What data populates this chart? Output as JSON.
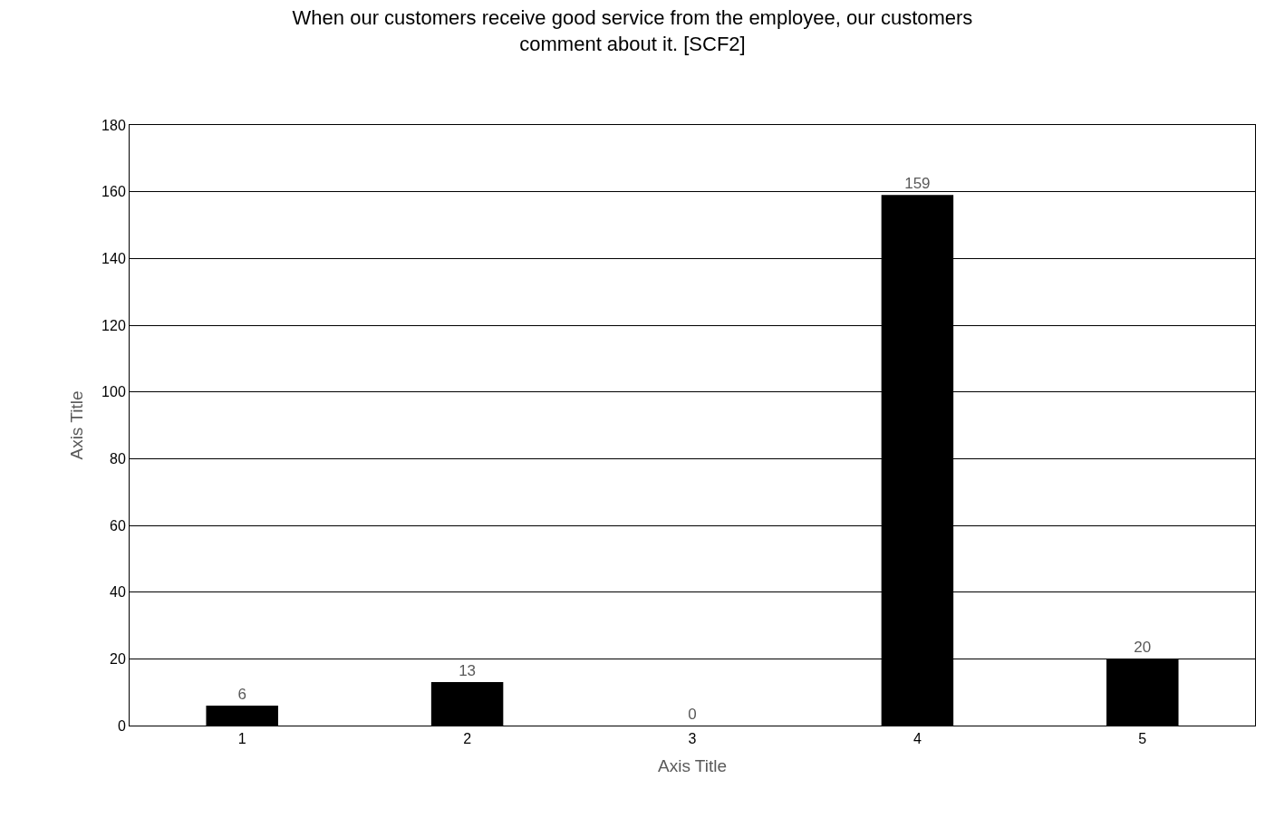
{
  "chart_data": {
    "type": "bar",
    "title": "When our customers receive good service from the employee, our customers\ncomment about it. [SCF2]",
    "xlabel": "Axis Title",
    "ylabel": "Axis Title",
    "categories": [
      "1",
      "2",
      "3",
      "4",
      "5"
    ],
    "values": [
      6,
      13,
      0,
      159,
      20
    ],
    "color": "#000000",
    "ylim": [
      0,
      180
    ],
    "yticks": [
      0,
      20,
      40,
      60,
      80,
      100,
      120,
      140,
      160,
      180
    ],
    "grid": "y",
    "data_labels": true
  }
}
